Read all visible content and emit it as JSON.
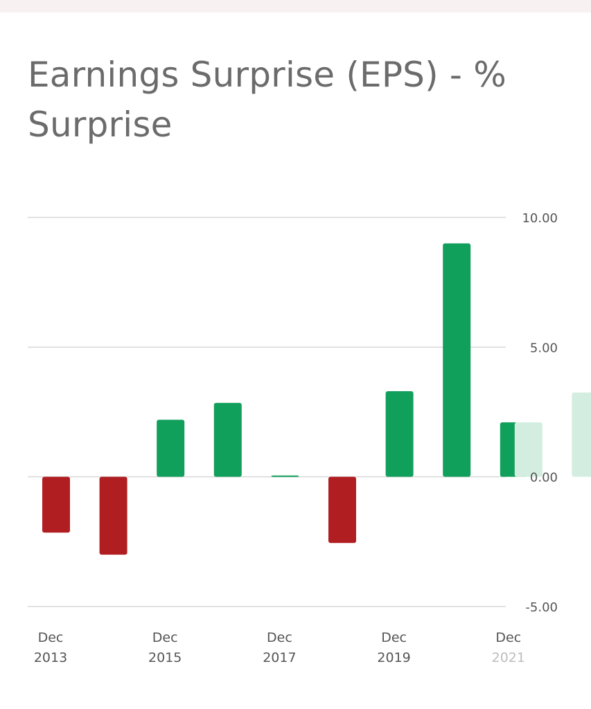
{
  "chart_data": {
    "type": "bar",
    "title": "Earnings Surprise (EPS) - % Surprise",
    "y_ticks": [
      "10.00",
      "5.00",
      "0.00",
      "-5.00"
    ],
    "ylim": [
      -5,
      10
    ],
    "x_tick_labels": [
      [
        "Dec",
        "2013"
      ],
      [
        "Dec",
        "2015"
      ],
      [
        "Dec",
        "2017"
      ],
      [
        "Dec",
        "2019"
      ],
      [
        "Dec",
        "2021"
      ]
    ],
    "bars": [
      {
        "period": "2013",
        "value": -2.15,
        "color": "#b01e22"
      },
      {
        "period": "2014",
        "value": -3.0,
        "color": "#b01e22"
      },
      {
        "period": "2015",
        "value": 2.2,
        "color": "#119f5c"
      },
      {
        "period": "2016",
        "value": 2.85,
        "color": "#119f5c"
      },
      {
        "period": "2017",
        "value": 0.05,
        "color": "#119f5c"
      },
      {
        "period": "2018",
        "value": -2.55,
        "color": "#b01e22"
      },
      {
        "period": "2019",
        "value": 3.3,
        "color": "#119f5c"
      },
      {
        "period": "2020",
        "value": 9.0,
        "color": "#119f5c"
      },
      {
        "period": "2021",
        "value": 2.1,
        "color": "#119f5c"
      }
    ],
    "overlay_bars": [
      {
        "period": "2021",
        "value": 2.1,
        "color": "#d3eee0"
      },
      {
        "period": "2022",
        "value": 3.25,
        "color": "#d3eee0"
      }
    ],
    "grid": true,
    "y_axis_side": "right",
    "colors": {
      "positive": "#119f5c",
      "negative": "#b01e22",
      "forecast": "#d3eee0",
      "grid": "#d8d8d8",
      "title": "#6b6b6b"
    }
  }
}
